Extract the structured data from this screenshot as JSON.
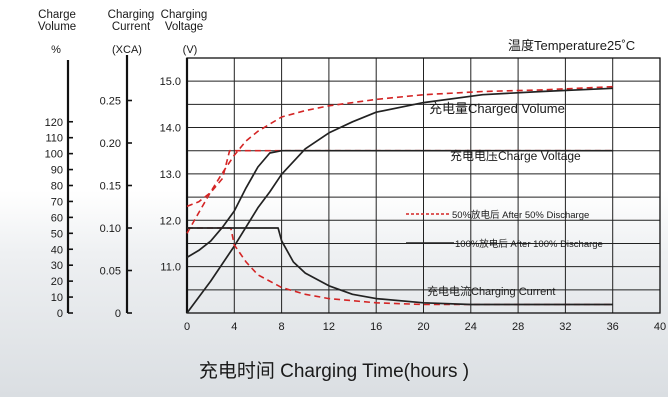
{
  "chart_data": {
    "type": "line",
    "temperature_note": "温度Temperature25˚C",
    "x_axis": {
      "title": "充电时间 Charging Time(hours )",
      "ticks": [
        0,
        4,
        8,
        12,
        16,
        20,
        24,
        28,
        32,
        36,
        40
      ],
      "range": [
        0,
        40
      ]
    },
    "axes": [
      {
        "name": "charge_volume",
        "header": [
          "Charge",
          "Volume"
        ],
        "unit": "%",
        "ticks": [
          "0",
          "10",
          "20",
          "30",
          "40",
          "50",
          "60",
          "70",
          "80",
          "90",
          "100",
          "110",
          "120"
        ],
        "range": [
          0,
          160
        ]
      },
      {
        "name": "charging_current",
        "header": [
          "Charging",
          "Current"
        ],
        "unit": "(XCA)",
        "ticks": [
          "0",
          "0.05",
          "0.10",
          "0.15",
          "0.20",
          "0.25"
        ],
        "range": [
          0,
          0.3
        ]
      },
      {
        "name": "charging_voltage",
        "header": [
          "Charging",
          "Voltage"
        ],
        "unit": "(V)",
        "ticks": [
          "11.0",
          "12.0",
          "13.0",
          "14.0",
          "15.0"
        ],
        "range": [
          10.0,
          15.5
        ]
      }
    ],
    "curve_labels": {
      "volume": "充电量Charged Volume",
      "voltage": "充电电压Charge Voltage",
      "current": "充电电流Charging Current"
    },
    "legend": {
      "placement": "right-center",
      "entries": [
        {
          "label": "50%放电后 After 50% Discharge",
          "style": "dashed",
          "color": "#d42525"
        },
        {
          "label": "100%放电后 After 100% Discharge",
          "style": "solid",
          "color": "#222222"
        }
      ]
    },
    "grid": true,
    "series": [
      {
        "curve": "charged_volume",
        "condition": "after_50_discharge",
        "axis": "charge_volume",
        "points": [
          [
            0,
            50
          ],
          [
            1,
            63
          ],
          [
            2,
            76
          ],
          [
            3,
            88
          ],
          [
            4,
            99
          ],
          [
            5,
            108
          ],
          [
            6,
            114
          ],
          [
            8,
            123
          ],
          [
            10,
            127
          ],
          [
            12,
            130
          ],
          [
            16,
            134
          ],
          [
            20,
            137
          ],
          [
            25,
            139
          ],
          [
            30,
            140
          ],
          [
            36,
            142
          ]
        ]
      },
      {
        "curve": "charged_volume",
        "condition": "after_100_discharge",
        "axis": "charge_volume",
        "points": [
          [
            0,
            0
          ],
          [
            2,
            20
          ],
          [
            4,
            42
          ],
          [
            6,
            66
          ],
          [
            7,
            76
          ],
          [
            8,
            87
          ],
          [
            10,
            103
          ],
          [
            12,
            113
          ],
          [
            14,
            120
          ],
          [
            16,
            126
          ],
          [
            20,
            132
          ],
          [
            25,
            137
          ],
          [
            30,
            139
          ],
          [
            36,
            141
          ]
        ]
      },
      {
        "curve": "charge_voltage",
        "condition": "after_50_discharge",
        "axis": "charging_voltage",
        "points": [
          [
            0,
            12.3
          ],
          [
            1,
            12.4
          ],
          [
            2,
            12.6
          ],
          [
            3,
            12.9
          ],
          [
            3.6,
            13.5
          ],
          [
            6,
            13.5
          ],
          [
            8,
            13.5
          ],
          [
            12,
            13.5
          ],
          [
            20,
            13.5
          ],
          [
            30,
            13.5
          ],
          [
            36,
            13.5
          ]
        ]
      },
      {
        "curve": "charge_voltage",
        "condition": "after_100_discharge",
        "axis": "charging_voltage",
        "points": [
          [
            0,
            11.2
          ],
          [
            1,
            11.35
          ],
          [
            2,
            11.55
          ],
          [
            3,
            11.85
          ],
          [
            4,
            12.2
          ],
          [
            5,
            12.7
          ],
          [
            6,
            13.15
          ],
          [
            7,
            13.45
          ],
          [
            8,
            13.5
          ],
          [
            12,
            13.5
          ],
          [
            20,
            13.5
          ],
          [
            30,
            13.5
          ],
          [
            36,
            13.5
          ]
        ]
      },
      {
        "curve": "charging_current",
        "condition": "after_50_discharge",
        "axis": "charging_current",
        "points": [
          [
            0,
            0.1
          ],
          [
            3.7,
            0.1
          ],
          [
            4,
            0.08
          ],
          [
            5,
            0.06
          ],
          [
            6,
            0.045
          ],
          [
            8,
            0.03
          ],
          [
            10,
            0.022
          ],
          [
            12,
            0.017
          ],
          [
            16,
            0.012
          ],
          [
            20,
            0.01
          ],
          [
            36,
            0.01
          ]
        ]
      },
      {
        "curve": "charging_current",
        "condition": "after_100_discharge",
        "axis": "charging_current",
        "points": [
          [
            0,
            0.1
          ],
          [
            7.7,
            0.1
          ],
          [
            8,
            0.085
          ],
          [
            9,
            0.06
          ],
          [
            10,
            0.047
          ],
          [
            12,
            0.032
          ],
          [
            14,
            0.022
          ],
          [
            16,
            0.017
          ],
          [
            20,
            0.012
          ],
          [
            24,
            0.01
          ],
          [
            36,
            0.01
          ]
        ]
      }
    ]
  }
}
